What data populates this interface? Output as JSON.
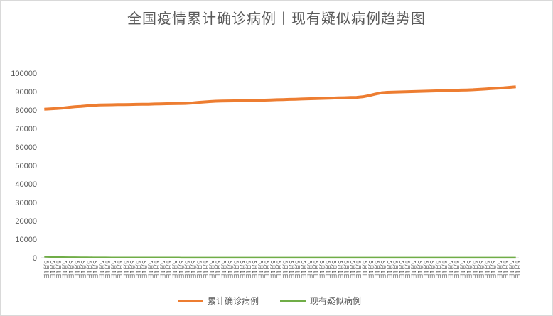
{
  "chart_data": {
    "type": "line",
    "title": "全国疫情累计确诊病例丨现有疑似病例趋势图",
    "ylim": [
      0,
      100000
    ],
    "y_ticks": [
      0,
      10000,
      20000,
      30000,
      40000,
      50000,
      60000,
      70000,
      80000,
      90000,
      100000
    ],
    "x_label_pattern": "5月1日",
    "n_points": 78,
    "grid": false,
    "legend_position": "bottom",
    "series": [
      {
        "name": "累计确诊病例",
        "color": "#ed7d31",
        "values": [
          80500,
          80700,
          80900,
          81100,
          81500,
          81800,
          82000,
          82300,
          82600,
          82800,
          82850,
          82900,
          82950,
          83000,
          83050,
          83100,
          83150,
          83200,
          83300,
          83400,
          83450,
          83500,
          83550,
          83600,
          83800,
          84100,
          84400,
          84600,
          84800,
          84900,
          84950,
          85000,
          85050,
          85100,
          85200,
          85300,
          85400,
          85500,
          85600,
          85700,
          85800,
          85900,
          86000,
          86100,
          86200,
          86300,
          86400,
          86500,
          86600,
          86700,
          86800,
          86900,
          87200,
          87800,
          88600,
          89300,
          89600,
          89700,
          89800,
          89900,
          90000,
          90100,
          90200,
          90300,
          90400,
          90500,
          90600,
          90700,
          90800,
          90900,
          91000,
          91200,
          91400,
          91600,
          91800,
          92000,
          92300,
          92600
        ]
      },
      {
        "name": "现有疑似病例",
        "color": "#70ad47",
        "values": [
          600,
          450,
          350,
          300,
          250,
          220,
          200,
          180,
          160,
          150,
          140,
          130,
          120,
          110,
          100,
          95,
          90,
          85,
          80,
          75,
          70,
          65,
          60,
          55,
          50,
          48,
          46,
          44,
          42,
          40,
          38,
          36,
          34,
          32,
          30,
          28,
          26,
          24,
          22,
          20,
          20,
          20,
          20,
          20,
          20,
          20,
          20,
          20,
          20,
          20,
          20,
          20,
          20,
          20,
          20,
          20,
          20,
          20,
          20,
          20,
          20,
          20,
          20,
          20,
          20,
          20,
          20,
          20,
          20,
          20,
          20,
          20,
          20,
          20,
          20,
          20,
          20,
          20
        ]
      }
    ]
  }
}
